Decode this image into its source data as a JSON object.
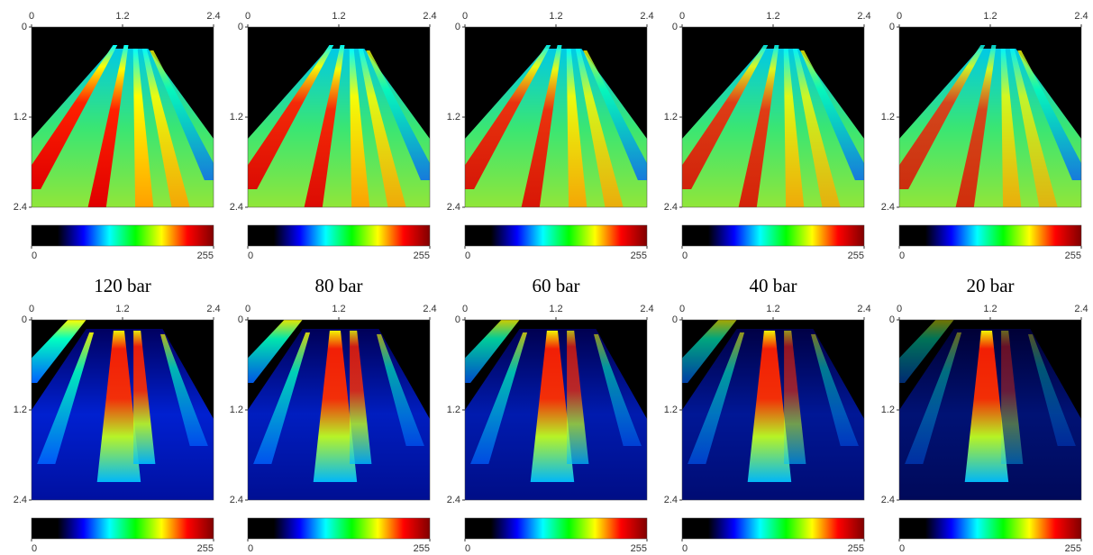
{
  "column_labels": [
    "120 bar",
    "80 bar",
    "60 bar",
    "40 bar",
    "20 bar"
  ],
  "colormap": [
    "#000000",
    "#000000",
    "#0000ff",
    "#00ffff",
    "#00ff00",
    "#ffff00",
    "#ff0000",
    "#800000"
  ],
  "chart_data": [
    {
      "type": "heatmap",
      "xlim": [
        0,
        2.4
      ],
      "xticks": [
        0,
        1.2,
        2.4
      ],
      "ylim": [
        0,
        2.4
      ],
      "yticks": [
        0,
        1.2,
        2.4
      ],
      "clim": [
        0,
        255
      ],
      "cticks": [
        0,
        255
      ]
    },
    {
      "type": "heatmap",
      "xlim": [
        0,
        2.4
      ],
      "xticks": [
        0,
        1.2,
        2.4
      ],
      "ylim": [
        0,
        2.4
      ],
      "yticks": [
        0,
        1.2,
        2.4
      ],
      "clim": [
        0,
        255
      ],
      "cticks": [
        0,
        255
      ]
    },
    {
      "type": "heatmap",
      "xlim": [
        0,
        2.4
      ],
      "xticks": [
        0,
        1.2,
        2.4
      ],
      "ylim": [
        0,
        2.4
      ],
      "yticks": [
        0,
        1.2,
        2.4
      ],
      "clim": [
        0,
        255
      ],
      "cticks": [
        0,
        255
      ]
    },
    {
      "type": "heatmap",
      "xlim": [
        0,
        2.4
      ],
      "xticks": [
        0,
        1.2,
        2.4
      ],
      "ylim": [
        0,
        2.4
      ],
      "yticks": [
        0,
        1.2,
        2.4
      ],
      "clim": [
        0,
        255
      ],
      "cticks": [
        0,
        255
      ]
    },
    {
      "type": "heatmap",
      "xlim": [
        0,
        2.4
      ],
      "xticks": [
        0,
        1.2,
        2.4
      ],
      "ylim": [
        0,
        2.4
      ],
      "yticks": [
        0,
        1.2,
        2.4
      ],
      "clim": [
        0,
        255
      ],
      "cticks": [
        0,
        255
      ]
    },
    {
      "type": "heatmap",
      "xlim": [
        0,
        2.4
      ],
      "xticks": [
        0,
        1.2,
        2.4
      ],
      "ylim": [
        0,
        2.4
      ],
      "yticks": [
        0,
        1.2,
        2.4
      ],
      "clim": [
        0,
        255
      ],
      "cticks": [
        0,
        255
      ]
    },
    {
      "type": "heatmap",
      "xlim": [
        0,
        2.4
      ],
      "xticks": [
        0,
        1.2,
        2.4
      ],
      "ylim": [
        0,
        2.4
      ],
      "yticks": [
        0,
        1.2,
        2.4
      ],
      "clim": [
        0,
        255
      ],
      "cticks": [
        0,
        255
      ]
    },
    {
      "type": "heatmap",
      "xlim": [
        0,
        2.4
      ],
      "xticks": [
        0,
        1.2,
        2.4
      ],
      "ylim": [
        0,
        2.4
      ],
      "yticks": [
        0,
        1.2,
        2.4
      ],
      "clim": [
        0,
        255
      ],
      "cticks": [
        0,
        255
      ]
    },
    {
      "type": "heatmap",
      "xlim": [
        0,
        2.4
      ],
      "xticks": [
        0,
        1.2,
        2.4
      ],
      "ylim": [
        0,
        2.4
      ],
      "yticks": [
        0,
        1.2,
        2.4
      ],
      "clim": [
        0,
        255
      ],
      "cticks": [
        0,
        255
      ]
    },
    {
      "type": "heatmap",
      "xlim": [
        0,
        2.4
      ],
      "xticks": [
        0,
        1.2,
        2.4
      ],
      "ylim": [
        0,
        2.4
      ],
      "yticks": [
        0,
        1.2,
        2.4
      ],
      "clim": [
        0,
        255
      ],
      "cticks": [
        0,
        255
      ]
    }
  ]
}
